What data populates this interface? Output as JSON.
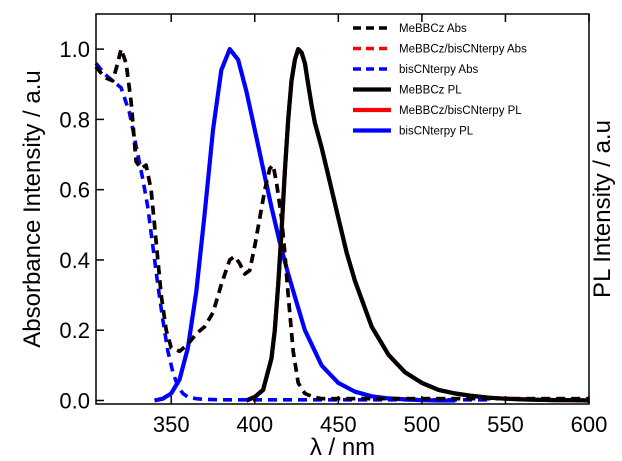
{
  "chart_data": {
    "type": "line",
    "title": "",
    "xlabel": "λ / nm",
    "ylabel_left": "Absorbance Intensity / a.u",
    "ylabel_right": "PL Intensity / a.u",
    "xlim": [
      305,
      600
    ],
    "ylim": [
      -0.01,
      1.1
    ],
    "xticks": [
      350,
      400,
      450,
      500,
      550,
      600
    ],
    "yticks": [
      "0.0",
      "0.2",
      "0.4",
      "0.6",
      "0.8",
      "1.0"
    ],
    "grid": false,
    "legend_position": "top-right",
    "series": [
      {
        "name": "MeBBCz Abs",
        "color": "#000000",
        "style": "dashed",
        "x": [
          305,
          310,
          315,
          318,
          320,
          323,
          326,
          329,
          332,
          335,
          338,
          341,
          344,
          347,
          350,
          355,
          360,
          365,
          370,
          375,
          380,
          385,
          388,
          391,
          394,
          397,
          400,
          403,
          406,
          409,
          411,
          413,
          416,
          418,
          420,
          423,
          426,
          430,
          435,
          440,
          450,
          460,
          470,
          480,
          490,
          500,
          510,
          520,
          530,
          540,
          550,
          560,
          570,
          580,
          590,
          600
        ],
        "y": [
          0.95,
          0.92,
          0.91,
          0.96,
          1.0,
          0.96,
          0.85,
          0.68,
          0.66,
          0.67,
          0.6,
          0.45,
          0.3,
          0.2,
          0.15,
          0.14,
          0.16,
          0.19,
          0.21,
          0.25,
          0.33,
          0.4,
          0.41,
          0.39,
          0.36,
          0.37,
          0.44,
          0.52,
          0.6,
          0.66,
          0.67,
          0.62,
          0.52,
          0.42,
          0.3,
          0.14,
          0.05,
          0.02,
          0.01,
          0.005,
          0.005,
          0.005,
          0.005,
          0.005,
          0.005,
          0.005,
          0.005,
          0.005,
          0.005,
          0.005,
          0.005,
          0.005,
          0.005,
          0.005,
          0.005,
          0.005
        ]
      },
      {
        "name": "MeBBCz/bisCNterpy Abs",
        "color": "#ff0000",
        "style": "dashed",
        "x": [
          305,
          310,
          315,
          318,
          320,
          323,
          326,
          329,
          332,
          335,
          338,
          341,
          344,
          347,
          350,
          355,
          360,
          365,
          370,
          375,
          380,
          385,
          388,
          391,
          394,
          397,
          400,
          403,
          406,
          409,
          411,
          413,
          416,
          418,
          420,
          423,
          426,
          430,
          435,
          440,
          450,
          460,
          470,
          480,
          490,
          500,
          510,
          520,
          530,
          540,
          550,
          560,
          570,
          580,
          590,
          600
        ],
        "y": [
          0.95,
          0.92,
          0.91,
          0.96,
          1.0,
          0.96,
          0.85,
          0.68,
          0.66,
          0.67,
          0.6,
          0.45,
          0.3,
          0.2,
          0.15,
          0.14,
          0.16,
          0.19,
          0.21,
          0.25,
          0.33,
          0.4,
          0.41,
          0.39,
          0.36,
          0.37,
          0.44,
          0.52,
          0.6,
          0.66,
          0.67,
          0.62,
          0.52,
          0.42,
          0.3,
          0.14,
          0.05,
          0.02,
          0.01,
          0.005,
          0.005,
          0.005,
          0.005,
          0.005,
          0.005,
          0.005,
          0.005,
          0.005,
          0.005,
          0.005,
          0.005,
          0.005,
          0.005,
          0.005,
          0.005,
          0.005
        ]
      },
      {
        "name": "bisCNterpy Abs",
        "color": "#0000ff",
        "style": "dashed",
        "x": [
          305,
          310,
          315,
          320,
          325,
          330,
          333,
          336,
          339,
          342,
          345,
          348,
          351,
          354,
          357,
          360,
          365,
          370,
          380,
          390,
          400,
          420,
          450,
          480,
          500,
          520,
          540
        ],
        "y": [
          0.96,
          0.93,
          0.91,
          0.89,
          0.82,
          0.7,
          0.63,
          0.55,
          0.44,
          0.33,
          0.23,
          0.14,
          0.08,
          0.04,
          0.02,
          0.01,
          0.005,
          0.003,
          0.002,
          0.002,
          0.002,
          0.002,
          0.002,
          0.002,
          0.002,
          0.002,
          0.002
        ]
      },
      {
        "name": "MeBBCz PL",
        "color": "#000000",
        "style": "solid",
        "x": [
          395,
          400,
          405,
          410,
          412,
          414,
          416,
          418,
          420,
          422,
          424,
          426,
          428,
          430,
          432,
          434,
          436,
          440,
          445,
          450,
          455,
          460,
          470,
          480,
          490,
          500,
          510,
          520,
          530,
          540,
          550,
          560,
          570,
          580,
          590,
          600
        ],
        "y": [
          0.0,
          0.01,
          0.03,
          0.12,
          0.2,
          0.33,
          0.48,
          0.65,
          0.8,
          0.91,
          0.97,
          1.0,
          0.99,
          0.96,
          0.9,
          0.84,
          0.79,
          0.72,
          0.62,
          0.52,
          0.42,
          0.34,
          0.21,
          0.13,
          0.08,
          0.05,
          0.03,
          0.02,
          0.013,
          0.008,
          0.005,
          0.003,
          0.002,
          0.001,
          0.001,
          0.0
        ]
      },
      {
        "name": "MeBBCz/bisCNterpy PL",
        "color": "#ff0000",
        "style": "solid",
        "x": [
          395,
          400,
          405,
          410,
          412,
          414,
          416,
          418,
          420,
          422,
          424,
          426,
          428,
          430,
          432,
          434,
          436,
          440,
          445,
          450,
          455,
          460,
          470,
          480,
          490,
          500,
          510,
          520,
          530,
          540,
          550,
          560,
          570,
          580,
          590,
          600
        ],
        "y": [
          0.0,
          0.01,
          0.03,
          0.12,
          0.2,
          0.33,
          0.48,
          0.65,
          0.8,
          0.91,
          0.97,
          1.0,
          0.99,
          0.96,
          0.9,
          0.84,
          0.79,
          0.72,
          0.62,
          0.52,
          0.42,
          0.34,
          0.21,
          0.13,
          0.08,
          0.05,
          0.03,
          0.02,
          0.013,
          0.008,
          0.005,
          0.003,
          0.002,
          0.001,
          0.001,
          0.0
        ]
      },
      {
        "name": "bisCNterpy PL",
        "color": "#0000ff",
        "style": "solid",
        "x": [
          340,
          345,
          350,
          355,
          360,
          365,
          370,
          375,
          380,
          385,
          390,
          395,
          400,
          405,
          410,
          415,
          420,
          425,
          430,
          440,
          450,
          460,
          470,
          480,
          490,
          500,
          510,
          520
        ],
        "y": [
          0.0,
          0.005,
          0.02,
          0.06,
          0.15,
          0.31,
          0.53,
          0.77,
          0.94,
          1.0,
          0.97,
          0.88,
          0.77,
          0.66,
          0.55,
          0.45,
          0.36,
          0.28,
          0.2,
          0.1,
          0.05,
          0.025,
          0.012,
          0.006,
          0.003,
          0.001,
          0.0,
          0.0
        ]
      }
    ]
  }
}
